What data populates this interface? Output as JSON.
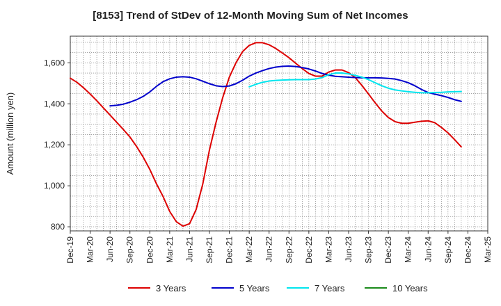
{
  "chart_data": {
    "type": "line",
    "title": "[8153]  Trend of StDev of 12-Month Moving Sum of Net Incomes",
    "xlabel": "",
    "ylabel": "Amount (million yen)",
    "ylim": [
      780,
      1730
    ],
    "yticks": [
      800,
      1000,
      1200,
      1400,
      1600
    ],
    "ytick_labels": [
      "800",
      "1,000",
      "1,200",
      "1,400",
      "1,600"
    ],
    "xlim": [
      "2019-12",
      "2025-03"
    ],
    "xtick_labels": [
      "Dec-19",
      "Mar-20",
      "Jun-20",
      "Sep-20",
      "Dec-20",
      "Mar-21",
      "Jun-21",
      "Sep-21",
      "Dec-21",
      "Mar-22",
      "Jun-22",
      "Sep-22",
      "Dec-22",
      "Mar-23",
      "Jun-23",
      "Sep-23",
      "Dec-23",
      "Mar-24",
      "Jun-24",
      "Sep-24",
      "Dec-24",
      "Mar-25"
    ],
    "grid": true,
    "legend_position": "bottom",
    "series": [
      {
        "name": "3 Years",
        "color": "#dd0000",
        "points": [
          [
            "2019-12",
            1525
          ],
          [
            "2020-01",
            1505
          ],
          [
            "2020-02",
            1478
          ],
          [
            "2020-03",
            1448
          ],
          [
            "2020-04",
            1415
          ],
          [
            "2020-05",
            1380
          ],
          [
            "2020-06",
            1345
          ],
          [
            "2020-07",
            1310
          ],
          [
            "2020-08",
            1275
          ],
          [
            "2020-09",
            1238
          ],
          [
            "2020-10",
            1192
          ],
          [
            "2020-11",
            1140
          ],
          [
            "2020-12",
            1080
          ],
          [
            "2020-13",
            1010
          ],
          [
            "2021-02",
            948
          ],
          [
            "2021-03",
            875
          ],
          [
            "2021-04",
            825
          ],
          [
            "2021-05",
            803
          ],
          [
            "2021-06",
            815
          ],
          [
            "2021-07",
            885
          ],
          [
            "2021-08",
            1010
          ],
          [
            "2021-09",
            1175
          ],
          [
            "2021-10",
            1310
          ],
          [
            "2021-11",
            1430
          ],
          [
            "2021-12",
            1530
          ],
          [
            "2022-01",
            1600
          ],
          [
            "2022-02",
            1655
          ],
          [
            "2022-03",
            1685
          ],
          [
            "2022-04",
            1698
          ],
          [
            "2022-05",
            1698
          ],
          [
            "2022-06",
            1688
          ],
          [
            "2022-07",
            1670
          ],
          [
            "2022-08",
            1648
          ],
          [
            "2022-09",
            1625
          ],
          [
            "2022-10",
            1598
          ],
          [
            "2022-11",
            1572
          ],
          [
            "2022-12",
            1548
          ],
          [
            "2023-01",
            1535
          ],
          [
            "2023-02",
            1535
          ],
          [
            "2023-03",
            1555
          ],
          [
            "2023-04",
            1565
          ],
          [
            "2023-05",
            1565
          ],
          [
            "2023-06",
            1552
          ],
          [
            "2023-07",
            1528
          ],
          [
            "2023-08",
            1490
          ],
          [
            "2023-09",
            1448
          ],
          [
            "2023-10",
            1405
          ],
          [
            "2023-11",
            1365
          ],
          [
            "2023-12",
            1333
          ],
          [
            "2024-01",
            1313
          ],
          [
            "2024-02",
            1305
          ],
          [
            "2024-03",
            1305
          ],
          [
            "2024-04",
            1310
          ],
          [
            "2024-05",
            1315
          ],
          [
            "2024-06",
            1317
          ],
          [
            "2024-07",
            1308
          ],
          [
            "2024-08",
            1285
          ],
          [
            "2024-09",
            1258
          ],
          [
            "2024-10",
            1225
          ],
          [
            "2024-11",
            1190
          ]
        ]
      },
      {
        "name": "5 Years",
        "color": "#0000cc",
        "points": [
          [
            "2020-06",
            1390
          ],
          [
            "2020-07",
            1393
          ],
          [
            "2020-08",
            1398
          ],
          [
            "2020-09",
            1408
          ],
          [
            "2020-10",
            1420
          ],
          [
            "2020-11",
            1436
          ],
          [
            "2020-12",
            1458
          ],
          [
            "2020-13",
            1485
          ],
          [
            "2021-02",
            1508
          ],
          [
            "2021-03",
            1522
          ],
          [
            "2021-04",
            1530
          ],
          [
            "2021-05",
            1532
          ],
          [
            "2021-06",
            1530
          ],
          [
            "2021-07",
            1522
          ],
          [
            "2021-08",
            1510
          ],
          [
            "2021-09",
            1498
          ],
          [
            "2021-10",
            1488
          ],
          [
            "2021-11",
            1484
          ],
          [
            "2021-12",
            1487
          ],
          [
            "2022-01",
            1498
          ],
          [
            "2022-02",
            1515
          ],
          [
            "2022-03",
            1535
          ],
          [
            "2022-04",
            1550
          ],
          [
            "2022-05",
            1562
          ],
          [
            "2022-06",
            1572
          ],
          [
            "2022-07",
            1579
          ],
          [
            "2022-08",
            1583
          ],
          [
            "2022-09",
            1584
          ],
          [
            "2022-10",
            1582
          ],
          [
            "2022-11",
            1577
          ],
          [
            "2022-12",
            1570
          ],
          [
            "2023-01",
            1560
          ],
          [
            "2023-02",
            1548
          ],
          [
            "2023-03",
            1540
          ],
          [
            "2023-04",
            1534
          ],
          [
            "2023-05",
            1532
          ],
          [
            "2023-06",
            1530
          ],
          [
            "2023-07",
            1528
          ],
          [
            "2023-08",
            1527
          ],
          [
            "2023-09",
            1527
          ],
          [
            "2023-10",
            1527
          ],
          [
            "2023-11",
            1526
          ],
          [
            "2023-12",
            1524
          ],
          [
            "2024-01",
            1521
          ],
          [
            "2024-02",
            1513
          ],
          [
            "2024-03",
            1503
          ],
          [
            "2024-04",
            1488
          ],
          [
            "2024-05",
            1470
          ],
          [
            "2024-06",
            1455
          ],
          [
            "2024-07",
            1447
          ],
          [
            "2024-08",
            1440
          ],
          [
            "2024-09",
            1431
          ],
          [
            "2024-10",
            1420
          ],
          [
            "2024-11",
            1412
          ]
        ]
      },
      {
        "name": "7 Years",
        "color": "#00e5ee",
        "points": [
          [
            "2022-03",
            1483
          ],
          [
            "2022-04",
            1495
          ],
          [
            "2022-05",
            1505
          ],
          [
            "2022-06",
            1511
          ],
          [
            "2022-07",
            1514
          ],
          [
            "2022-08",
            1516
          ],
          [
            "2022-09",
            1517
          ],
          [
            "2022-10",
            1518
          ],
          [
            "2022-11",
            1518
          ],
          [
            "2022-12",
            1518
          ],
          [
            "2023-01",
            1521
          ],
          [
            "2023-02",
            1528
          ],
          [
            "2023-03",
            1542
          ],
          [
            "2023-04",
            1550
          ],
          [
            "2023-05",
            1550
          ],
          [
            "2023-06",
            1546
          ],
          [
            "2023-07",
            1539
          ],
          [
            "2023-08",
            1530
          ],
          [
            "2023-09",
            1518
          ],
          [
            "2023-10",
            1503
          ],
          [
            "2023-11",
            1488
          ],
          [
            "2023-12",
            1476
          ],
          [
            "2024-01",
            1468
          ],
          [
            "2024-02",
            1463
          ],
          [
            "2024-03",
            1459
          ],
          [
            "2024-04",
            1456
          ],
          [
            "2024-05",
            1454
          ],
          [
            "2024-06",
            1454
          ],
          [
            "2024-07",
            1455
          ],
          [
            "2024-08",
            1456
          ],
          [
            "2024-09",
            1458
          ],
          [
            "2024-10",
            1459
          ],
          [
            "2024-11",
            1460
          ]
        ]
      },
      {
        "name": "10 Years",
        "color": "#1a8a1a",
        "points": []
      }
    ]
  }
}
